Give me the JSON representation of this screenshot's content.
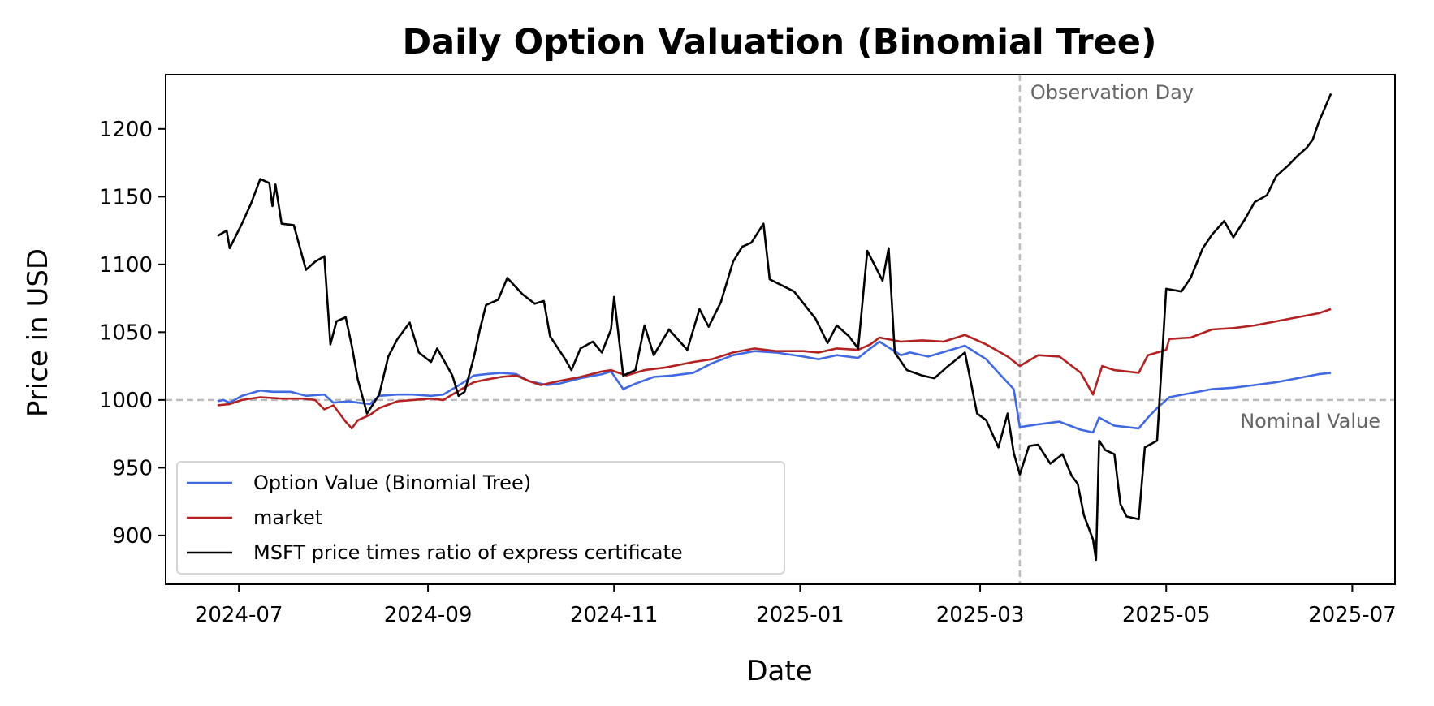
{
  "chart_data": {
    "type": "line",
    "title": "Daily Option Valuation (Binomial Tree)",
    "xlabel": "Date",
    "ylabel": "Price in USD",
    "xlim": [
      "2024-06-07",
      "2025-07-15"
    ],
    "ylim": [
      864,
      1240
    ],
    "x_ticks": [
      "2024-07-01",
      "2024-09-01",
      "2024-11-01",
      "2025-01-01",
      "2025-03-01",
      "2025-05-01",
      "2025-07-01"
    ],
    "x_tick_labels": [
      "2024-07",
      "2024-09",
      "2024-11",
      "2025-01",
      "2025-03",
      "2025-05",
      "2025-07"
    ],
    "y_ticks": [
      900,
      950,
      1000,
      1050,
      1100,
      1150,
      1200
    ],
    "y_tick_labels": [
      "900",
      "950",
      "1000",
      "1050",
      "1100",
      "1150",
      "1200"
    ],
    "grid": false,
    "legend_position": "lower-left",
    "reference_lines": [
      {
        "orientation": "vertical",
        "x": "2025-03-14",
        "label": "Observation Day",
        "color": "#bbbbbb",
        "style": "dashed"
      },
      {
        "orientation": "horizontal",
        "y": 1000,
        "label": "Nominal Value",
        "color": "#bbbbbb",
        "style": "dashed"
      }
    ],
    "series": [
      {
        "name": "Option Value (Binomial Tree)",
        "color": "#4169e1",
        "points": [
          [
            "2024-06-24",
            999
          ],
          [
            "2024-06-26",
            1000
          ],
          [
            "2024-06-28",
            998
          ],
          [
            "2024-07-02",
            1003
          ],
          [
            "2024-07-08",
            1007
          ],
          [
            "2024-07-12",
            1006
          ],
          [
            "2024-07-18",
            1006
          ],
          [
            "2024-07-23",
            1003
          ],
          [
            "2024-07-29",
            1004
          ],
          [
            "2024-08-01",
            998
          ],
          [
            "2024-08-06",
            999
          ],
          [
            "2024-08-09",
            998
          ],
          [
            "2024-08-13",
            997
          ],
          [
            "2024-08-16",
            1003
          ],
          [
            "2024-08-22",
            1004
          ],
          [
            "2024-08-27",
            1004
          ],
          [
            "2024-09-02",
            1003
          ],
          [
            "2024-09-06",
            1004
          ],
          [
            "2024-09-12",
            1012
          ],
          [
            "2024-09-16",
            1018
          ],
          [
            "2024-09-20",
            1019
          ],
          [
            "2024-09-25",
            1020
          ],
          [
            "2024-09-30",
            1019
          ],
          [
            "2024-10-04",
            1014
          ],
          [
            "2024-10-10",
            1011
          ],
          [
            "2024-10-14",
            1012
          ],
          [
            "2024-10-21",
            1016
          ],
          [
            "2024-10-28",
            1019
          ],
          [
            "2024-10-31",
            1021
          ],
          [
            "2024-11-04",
            1008
          ],
          [
            "2024-11-08",
            1012
          ],
          [
            "2024-11-14",
            1017
          ],
          [
            "2024-11-20",
            1018
          ],
          [
            "2024-11-27",
            1020
          ],
          [
            "2024-12-03",
            1027
          ],
          [
            "2024-12-10",
            1033
          ],
          [
            "2024-12-17",
            1036
          ],
          [
            "2024-12-24",
            1035
          ],
          [
            "2025-01-02",
            1032
          ],
          [
            "2025-01-07",
            1030
          ],
          [
            "2025-01-13",
            1033
          ],
          [
            "2025-01-20",
            1031
          ],
          [
            "2025-01-24",
            1038
          ],
          [
            "2025-01-27",
            1043
          ],
          [
            "2025-02-03",
            1033
          ],
          [
            "2025-02-06",
            1035
          ],
          [
            "2025-02-12",
            1032
          ],
          [
            "2025-02-18",
            1036
          ],
          [
            "2025-02-24",
            1040
          ],
          [
            "2025-03-03",
            1030
          ],
          [
            "2025-03-07",
            1020
          ],
          [
            "2025-03-12",
            1008
          ],
          [
            "2025-03-14",
            980
          ],
          [
            "2025-03-20",
            982
          ],
          [
            "2025-03-27",
            984
          ],
          [
            "2025-04-03",
            978
          ],
          [
            "2025-04-07",
            976
          ],
          [
            "2025-04-09",
            987
          ],
          [
            "2025-04-14",
            981
          ],
          [
            "2025-04-22",
            979
          ],
          [
            "2025-04-25",
            987
          ],
          [
            "2025-04-28",
            994
          ],
          [
            "2025-05-02",
            1002
          ],
          [
            "2025-05-09",
            1005
          ],
          [
            "2025-05-16",
            1008
          ],
          [
            "2025-05-23",
            1009
          ],
          [
            "2025-05-30",
            1011
          ],
          [
            "2025-06-06",
            1013
          ],
          [
            "2025-06-13",
            1016
          ],
          [
            "2025-06-20",
            1019
          ],
          [
            "2025-06-24",
            1020
          ]
        ]
      },
      {
        "name": "market",
        "color": "#b22222",
        "points": [
          [
            "2024-06-24",
            996
          ],
          [
            "2024-06-28",
            997
          ],
          [
            "2024-07-02",
            1000
          ],
          [
            "2024-07-08",
            1002
          ],
          [
            "2024-07-15",
            1001
          ],
          [
            "2024-07-22",
            1001
          ],
          [
            "2024-07-26",
            1000
          ],
          [
            "2024-07-29",
            993
          ],
          [
            "2024-08-01",
            996
          ],
          [
            "2024-08-05",
            984
          ],
          [
            "2024-08-07",
            979
          ],
          [
            "2024-08-09",
            985
          ],
          [
            "2024-08-13",
            989
          ],
          [
            "2024-08-16",
            994
          ],
          [
            "2024-08-22",
            999
          ],
          [
            "2024-08-27",
            1000
          ],
          [
            "2024-09-02",
            1001
          ],
          [
            "2024-09-06",
            1000
          ],
          [
            "2024-09-12",
            1008
          ],
          [
            "2024-09-16",
            1013
          ],
          [
            "2024-09-20",
            1015
          ],
          [
            "2024-09-25",
            1017
          ],
          [
            "2024-09-30",
            1018
          ],
          [
            "2024-10-04",
            1014
          ],
          [
            "2024-10-08",
            1011
          ],
          [
            "2024-10-14",
            1014
          ],
          [
            "2024-10-21",
            1017
          ],
          [
            "2024-10-28",
            1021
          ],
          [
            "2024-10-31",
            1022
          ],
          [
            "2024-11-05",
            1018
          ],
          [
            "2024-11-11",
            1022
          ],
          [
            "2024-11-18",
            1024
          ],
          [
            "2024-11-27",
            1028
          ],
          [
            "2024-12-03",
            1030
          ],
          [
            "2024-12-10",
            1035
          ],
          [
            "2024-12-17",
            1038
          ],
          [
            "2024-12-24",
            1036
          ],
          [
            "2025-01-02",
            1036
          ],
          [
            "2025-01-07",
            1035
          ],
          [
            "2025-01-13",
            1038
          ],
          [
            "2025-01-20",
            1037
          ],
          [
            "2025-01-24",
            1041
          ],
          [
            "2025-01-27",
            1046
          ],
          [
            "2025-02-03",
            1043
          ],
          [
            "2025-02-10",
            1044
          ],
          [
            "2025-02-17",
            1043
          ],
          [
            "2025-02-24",
            1048
          ],
          [
            "2025-03-03",
            1041
          ],
          [
            "2025-03-10",
            1032
          ],
          [
            "2025-03-14",
            1025
          ],
          [
            "2025-03-20",
            1033
          ],
          [
            "2025-03-27",
            1032
          ],
          [
            "2025-04-03",
            1020
          ],
          [
            "2025-04-07",
            1004
          ],
          [
            "2025-04-10",
            1025
          ],
          [
            "2025-04-14",
            1022
          ],
          [
            "2025-04-22",
            1020
          ],
          [
            "2025-04-25",
            1033
          ],
          [
            "2025-05-01",
            1037
          ],
          [
            "2025-05-02",
            1045
          ],
          [
            "2025-05-09",
            1046
          ],
          [
            "2025-05-16",
            1052
          ],
          [
            "2025-05-23",
            1053
          ],
          [
            "2025-05-30",
            1055
          ],
          [
            "2025-06-06",
            1058
          ],
          [
            "2025-06-13",
            1061
          ],
          [
            "2025-06-20",
            1064
          ],
          [
            "2025-06-24",
            1067
          ]
        ]
      },
      {
        "name": "MSFT price times ratio of express certificate",
        "color": "#000000",
        "points": [
          [
            "2024-06-24",
            1121
          ],
          [
            "2024-06-27",
            1125
          ],
          [
            "2024-06-28",
            1112
          ],
          [
            "2024-07-02",
            1130
          ],
          [
            "2024-07-05",
            1145
          ],
          [
            "2024-07-08",
            1163
          ],
          [
            "2024-07-11",
            1160
          ],
          [
            "2024-07-12",
            1143
          ],
          [
            "2024-07-13",
            1159
          ],
          [
            "2024-07-15",
            1130
          ],
          [
            "2024-07-19",
            1129
          ],
          [
            "2024-07-23",
            1096
          ],
          [
            "2024-07-26",
            1102
          ],
          [
            "2024-07-29",
            1106
          ],
          [
            "2024-07-31",
            1041
          ],
          [
            "2024-08-02",
            1058
          ],
          [
            "2024-08-05",
            1061
          ],
          [
            "2024-08-07",
            1040
          ],
          [
            "2024-08-09",
            1015
          ],
          [
            "2024-08-12",
            990
          ],
          [
            "2024-08-16",
            1004
          ],
          [
            "2024-08-19",
            1032
          ],
          [
            "2024-08-22",
            1045
          ],
          [
            "2024-08-26",
            1057
          ],
          [
            "2024-08-29",
            1035
          ],
          [
            "2024-09-02",
            1028
          ],
          [
            "2024-09-04",
            1038
          ],
          [
            "2024-09-09",
            1018
          ],
          [
            "2024-09-11",
            1003
          ],
          [
            "2024-09-13",
            1006
          ],
          [
            "2024-09-16",
            1031
          ],
          [
            "2024-09-18",
            1052
          ],
          [
            "2024-09-20",
            1070
          ],
          [
            "2024-09-24",
            1074
          ],
          [
            "2024-09-27",
            1090
          ],
          [
            "2024-10-02",
            1078
          ],
          [
            "2024-10-06",
            1071
          ],
          [
            "2024-10-09",
            1073
          ],
          [
            "2024-10-11",
            1047
          ],
          [
            "2024-10-16",
            1030
          ],
          [
            "2024-10-18",
            1022
          ],
          [
            "2024-10-21",
            1038
          ],
          [
            "2024-10-25",
            1043
          ],
          [
            "2024-10-28",
            1035
          ],
          [
            "2024-10-31",
            1052
          ],
          [
            "2024-11-01",
            1076
          ],
          [
            "2024-11-04",
            1018
          ],
          [
            "2024-11-08",
            1022
          ],
          [
            "2024-11-11",
            1055
          ],
          [
            "2024-11-14",
            1033
          ],
          [
            "2024-11-19",
            1052
          ],
          [
            "2024-11-25",
            1037
          ],
          [
            "2024-11-29",
            1067
          ],
          [
            "2024-12-02",
            1054
          ],
          [
            "2024-12-06",
            1072
          ],
          [
            "2024-12-10",
            1102
          ],
          [
            "2024-12-13",
            1113
          ],
          [
            "2024-12-16",
            1116
          ],
          [
            "2024-12-20",
            1130
          ],
          [
            "2024-12-22",
            1089
          ],
          [
            "2024-12-30",
            1080
          ],
          [
            "2025-01-06",
            1060
          ],
          [
            "2025-01-10",
            1042
          ],
          [
            "2025-01-13",
            1055
          ],
          [
            "2025-01-17",
            1047
          ],
          [
            "2025-01-20",
            1038
          ],
          [
            "2025-01-23",
            1110
          ],
          [
            "2025-01-28",
            1088
          ],
          [
            "2025-01-30",
            1112
          ],
          [
            "2025-02-01",
            1035
          ],
          [
            "2025-02-05",
            1022
          ],
          [
            "2025-02-10",
            1018
          ],
          [
            "2025-02-14",
            1016
          ],
          [
            "2025-02-18",
            1024
          ],
          [
            "2025-02-24",
            1035
          ],
          [
            "2025-02-28",
            990
          ],
          [
            "2025-03-03",
            985
          ],
          [
            "2025-03-05",
            975
          ],
          [
            "2025-03-07",
            965
          ],
          [
            "2025-03-10",
            990
          ],
          [
            "2025-03-12",
            961
          ],
          [
            "2025-03-14",
            945
          ],
          [
            "2025-03-17",
            966
          ],
          [
            "2025-03-20",
            967
          ],
          [
            "2025-03-24",
            953
          ],
          [
            "2025-03-28",
            960
          ],
          [
            "2025-03-31",
            944
          ],
          [
            "2025-04-02",
            938
          ],
          [
            "2025-04-04",
            915
          ],
          [
            "2025-04-07",
            897
          ],
          [
            "2025-04-08",
            882
          ],
          [
            "2025-04-09",
            970
          ],
          [
            "2025-04-11",
            963
          ],
          [
            "2025-04-14",
            960
          ],
          [
            "2025-04-16",
            923
          ],
          [
            "2025-04-18",
            914
          ],
          [
            "2025-04-22",
            912
          ],
          [
            "2025-04-24",
            965
          ],
          [
            "2025-04-28",
            970
          ],
          [
            "2025-05-01",
            1082
          ],
          [
            "2025-05-06",
            1080
          ],
          [
            "2025-05-09",
            1090
          ],
          [
            "2025-05-13",
            1112
          ],
          [
            "2025-05-16",
            1122
          ],
          [
            "2025-05-20",
            1132
          ],
          [
            "2025-05-23",
            1120
          ],
          [
            "2025-05-27",
            1134
          ],
          [
            "2025-05-30",
            1146
          ],
          [
            "2025-06-03",
            1151
          ],
          [
            "2025-06-06",
            1165
          ],
          [
            "2025-06-10",
            1173
          ],
          [
            "2025-06-13",
            1180
          ],
          [
            "2025-06-16",
            1186
          ],
          [
            "2025-06-18",
            1192
          ],
          [
            "2025-06-20",
            1205
          ],
          [
            "2025-06-24",
            1226
          ]
        ]
      }
    ]
  }
}
